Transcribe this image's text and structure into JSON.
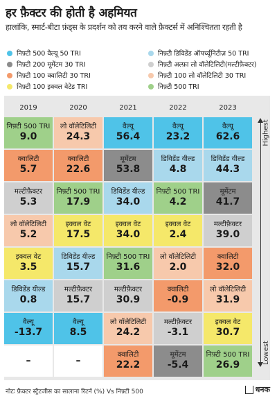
{
  "title": "हर फ़ैक्टर की होती है अहमियत",
  "subtitle": "हालांकि, स्मार्ट-बीटा फ़ंड्स के प्रदर्शन को तय करने वाले फ़ैक्टर्स में अनिश्चितता रहती है",
  "legend": [
    {
      "label": "निफ़्टी 500 वैल्यू 50 TRI",
      "color": "#4fc3e8"
    },
    {
      "label": "निफ़्टी डिविडेंड ऑपर्च्यूनिटीज़ 50 TRI",
      "color": "#a9d8ec"
    },
    {
      "label": "निफ़्टी 200 मूमेंटम 30 TRI",
      "color": "#8c8c8c"
    },
    {
      "label": "निफ़्टी अल्फ़ा लो वॉलेटिलिटी(मल्टीफ़ैक्टर)",
      "color": "#cfcfcf"
    },
    {
      "label": "निफ़्टी 100 क्वालिटी 30 TRI",
      "color": "#f39a6b"
    },
    {
      "label": "निफ़्टी 100 लो वॉलेटिलिटी 30 TRI",
      "color": "#f7c9ac"
    },
    {
      "label": "निफ़्टी 100 इक्वल वेटेड TRI",
      "color": "#f5e86a"
    },
    {
      "label": "निफ़्टी 500 TRI",
      "color": "#9fd08a"
    }
  ],
  "axis": {
    "top": "Highest",
    "bottom": "Lowest"
  },
  "note": "नोटः फ़ैक्टर स्ट्रैटजीस का सालाना रिटर्न (%) Vs निफ़्टी 500",
  "brand": "धनक",
  "chart_data": {
    "type": "table",
    "title": "हर फ़ैक्टर की होती है अहमियत",
    "years": [
      "2019",
      "2020",
      "2021",
      "2022",
      "2023"
    ],
    "columns": [
      {
        "year": "2019",
        "cells": [
          {
            "label": "निफ़्टी 500 TRI",
            "value": "9.0",
            "color": "#9fd08a"
          },
          {
            "label": "क्वालिटी",
            "value": "5.7",
            "color": "#f39a6b"
          },
          {
            "label": "मल्टीफ़ैक्टर",
            "value": "5.3",
            "color": "#cfcfcf"
          },
          {
            "label": "लो वॉलेटिलिटी",
            "value": "5.2",
            "color": "#f7c9ac"
          },
          {
            "label": "इक्वल वेट",
            "value": "3.5",
            "color": "#f5e86a"
          },
          {
            "label": "डिविडेंड यील्ड",
            "value": "0.8",
            "color": "#a9d8ec"
          },
          {
            "label": "वैल्यू",
            "value": "-13.7",
            "color": "#4fc3e8"
          },
          {
            "label": "",
            "value": "–",
            "color": "#ffffff"
          }
        ]
      },
      {
        "year": "2020",
        "cells": [
          {
            "label": "लो वॉलेटिलिटी",
            "value": "24.3",
            "color": "#f7c9ac"
          },
          {
            "label": "क्वालिटी",
            "value": "22.6",
            "color": "#f39a6b"
          },
          {
            "label": "निफ़्टी 500 TRI",
            "value": "17.9",
            "color": "#9fd08a"
          },
          {
            "label": "इक्वल वेट",
            "value": "17.5",
            "color": "#f5e86a"
          },
          {
            "label": "डिविडेंड यील्ड",
            "value": "15.7",
            "color": "#a9d8ec"
          },
          {
            "label": "मल्टीफ़ैक्टर",
            "value": "15.7",
            "color": "#cfcfcf"
          },
          {
            "label": "वैल्यू",
            "value": "8.5",
            "color": "#4fc3e8"
          },
          {
            "label": "",
            "value": "–",
            "color": "#ffffff"
          }
        ]
      },
      {
        "year": "2021",
        "cells": [
          {
            "label": "वैल्यू",
            "value": "56.4",
            "color": "#4fc3e8"
          },
          {
            "label": "मूमेंटम",
            "value": "53.8",
            "color": "#8c8c8c"
          },
          {
            "label": "डिविडेंड यील्ड",
            "value": "34.0",
            "color": "#a9d8ec"
          },
          {
            "label": "इक्वल वेट",
            "value": "34.0",
            "color": "#f5e86a"
          },
          {
            "label": "निफ़्टी 500 TRI",
            "value": "31.6",
            "color": "#9fd08a"
          },
          {
            "label": "मल्टीफ़ैक्टर",
            "value": "30.9",
            "color": "#cfcfcf"
          },
          {
            "label": "लो वॉलेटिलिटी",
            "value": "24.2",
            "color": "#f7c9ac"
          },
          {
            "label": "क्वालिटी",
            "value": "22.2",
            "color": "#f39a6b"
          }
        ]
      },
      {
        "year": "2022",
        "cells": [
          {
            "label": "वैल्यू",
            "value": "23.2",
            "color": "#4fc3e8"
          },
          {
            "label": "डिविडेंड यील्ड",
            "value": "4.8",
            "color": "#a9d8ec"
          },
          {
            "label": "निफ़्टी 500 TRI",
            "value": "4.2",
            "color": "#9fd08a"
          },
          {
            "label": "इक्वल वेट",
            "value": "2.4",
            "color": "#f5e86a"
          },
          {
            "label": "लो वॉलेटिलिटी",
            "value": "2.0",
            "color": "#f7c9ac"
          },
          {
            "label": "क्वालिटी",
            "value": "-0.9",
            "color": "#f39a6b"
          },
          {
            "label": "मल्टीफ़ैक्टर",
            "value": "-3.1",
            "color": "#cfcfcf"
          },
          {
            "label": "मूमेंटम",
            "value": "-5.4",
            "color": "#8c8c8c"
          }
        ]
      },
      {
        "year": "2023",
        "cells": [
          {
            "label": "वैल्यू",
            "value": "62.6",
            "color": "#4fc3e8"
          },
          {
            "label": "डिविडेंड यील्ड",
            "value": "44.3",
            "color": "#a9d8ec"
          },
          {
            "label": "मूमेंटम",
            "value": "41.7",
            "color": "#8c8c8c"
          },
          {
            "label": "मल्टीफ़ैक्टर",
            "value": "39.0",
            "color": "#cfcfcf"
          },
          {
            "label": "क्वालिटी",
            "value": "32.0",
            "color": "#f39a6b"
          },
          {
            "label": "लो वॉलेटिलिटी",
            "value": "31.9",
            "color": "#f7c9ac"
          },
          {
            "label": "इक्वल वेट",
            "value": "30.7",
            "color": "#f5e86a"
          },
          {
            "label": "निफ़्टी 500 TRI",
            "value": "26.9",
            "color": "#9fd08a"
          }
        ]
      }
    ]
  }
}
